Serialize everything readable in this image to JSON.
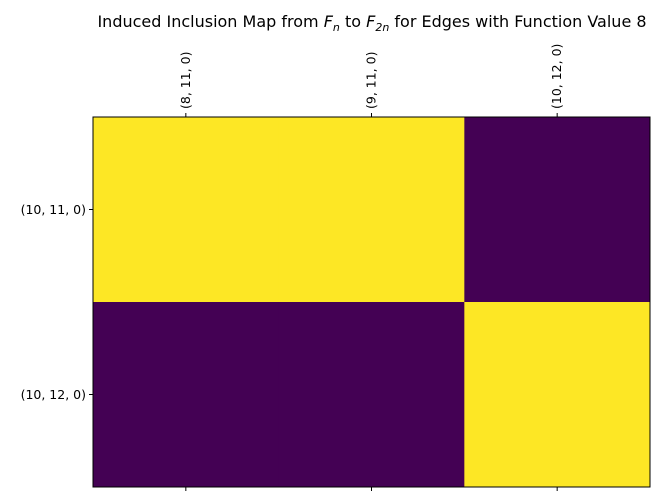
{
  "chart_data": {
    "type": "heatmap",
    "title": {
      "prefix": "Induced Inclusion Map from ",
      "from_symbol": "F",
      "from_subscript": "n",
      "middle": " to ",
      "to_symbol": "F",
      "to_subscript": "2n",
      "suffix": " for Edges with Function Value 8"
    },
    "x_categories": [
      "(8, 11, 0)",
      "(9, 11, 0)",
      "(10, 12, 0)"
    ],
    "y_categories": [
      "(10, 11, 0)",
      "(10, 12, 0)"
    ],
    "values": [
      [
        1,
        1,
        0
      ],
      [
        0,
        0,
        1
      ]
    ],
    "colors": {
      "high": "#fde725",
      "low": "#440154"
    },
    "x_axis_position": "top",
    "grid": false,
    "legend": "none"
  }
}
